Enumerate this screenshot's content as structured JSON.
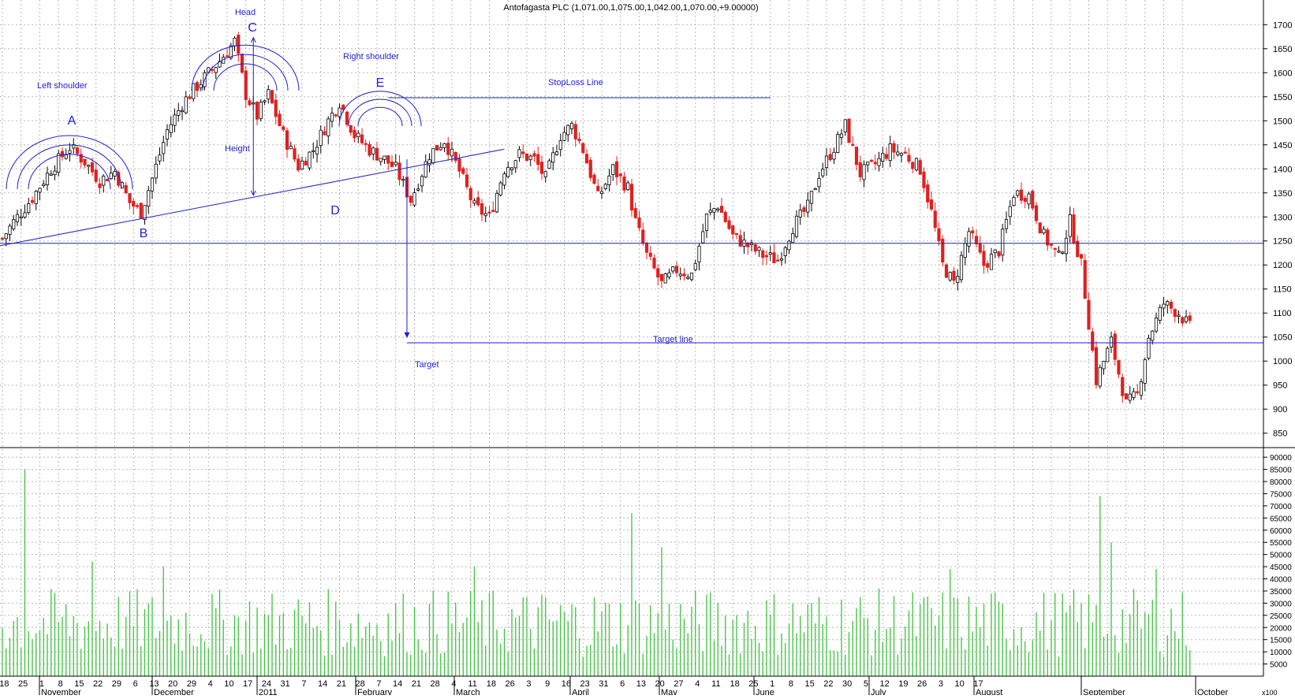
{
  "colors": {
    "up": "#000000",
    "down": "#e02020",
    "annotation": "#1f1fd0",
    "volume": "#40c040",
    "grid": "#b8b8b8"
  },
  "chart_data": [
    {
      "type": "candlestick",
      "title": "Antofagasta PLC (1,071.00,1,075.00,1,042.00,1,070.00,+9.00000)",
      "ylim": [
        820,
        1730
      ],
      "y_ticks": [
        850,
        900,
        950,
        1000,
        1050,
        1100,
        1150,
        1200,
        1250,
        1300,
        1350,
        1400,
        1450,
        1500,
        1550,
        1600,
        1650,
        1700
      ],
      "grid": true,
      "day_labels": [
        "18",
        "25",
        "1",
        "8",
        "15",
        "22",
        "29",
        "6",
        "13",
        "20",
        "29",
        "4",
        "10",
        "17",
        "24",
        "31",
        "7",
        "14",
        "21",
        "28",
        "7",
        "14",
        "21",
        "28",
        "4",
        "11",
        "18",
        "26",
        "3",
        "9",
        "16",
        "23",
        "31",
        "6",
        "13",
        "20",
        "27",
        "4",
        "11",
        "18",
        "25",
        "1",
        "8",
        "15",
        "22",
        "30",
        "5",
        "12",
        "19",
        "26",
        "3",
        "10",
        "17"
      ],
      "month_labels": [
        "November",
        "December",
        "2011",
        "February",
        "March",
        "April",
        "May",
        "June",
        "July",
        "August",
        "September",
        "October"
      ],
      "annotations": {
        "A": "A",
        "B": "B",
        "C": "C",
        "D": "D",
        "E": "E",
        "head": "Head",
        "left_shoulder": "Left shoulder",
        "right_shoulder": "Right shoulder",
        "height": "Height",
        "stoploss": "StopLoss Line",
        "target_line": "Target line",
        "target": "Target"
      },
      "levels": {
        "stoploss": 1548,
        "target": 1038,
        "support": 1245
      },
      "anchors": [
        {
          "d": 0,
          "c": 1255
        },
        {
          "d": 3,
          "c": 1290
        },
        {
          "d": 8,
          "c": 1340
        },
        {
          "d": 13,
          "c": 1400
        },
        {
          "d": 18,
          "c": 1445
        },
        {
          "d": 22,
          "c": 1415
        },
        {
          "d": 26,
          "c": 1375
        },
        {
          "d": 30,
          "c": 1395
        },
        {
          "d": 34,
          "c": 1330
        },
        {
          "d": 37,
          "c": 1310
        },
        {
          "d": 40,
          "c": 1380
        },
        {
          "d": 44,
          "c": 1480
        },
        {
          "d": 48,
          "c": 1535
        },
        {
          "d": 50,
          "c": 1555
        },
        {
          "d": 54,
          "c": 1590
        },
        {
          "d": 58,
          "c": 1625
        },
        {
          "d": 62,
          "c": 1665
        },
        {
          "d": 65,
          "c": 1555
        },
        {
          "d": 68,
          "c": 1510
        },
        {
          "d": 71,
          "c": 1555
        },
        {
          "d": 75,
          "c": 1470
        },
        {
          "d": 79,
          "c": 1405
        },
        {
          "d": 83,
          "c": 1440
        },
        {
          "d": 87,
          "c": 1500
        },
        {
          "d": 90,
          "c": 1540
        },
        {
          "d": 94,
          "c": 1470
        },
        {
          "d": 98,
          "c": 1440
        },
        {
          "d": 102,
          "c": 1420
        },
        {
          "d": 105,
          "c": 1400
        },
        {
          "d": 109,
          "c": 1335
        },
        {
          "d": 114,
          "c": 1430
        },
        {
          "d": 118,
          "c": 1460
        },
        {
          "d": 122,
          "c": 1395
        },
        {
          "d": 126,
          "c": 1320
        },
        {
          "d": 130,
          "c": 1300
        },
        {
          "d": 134,
          "c": 1400
        },
        {
          "d": 138,
          "c": 1430
        },
        {
          "d": 142,
          "c": 1420
        },
        {
          "d": 145,
          "c": 1380
        },
        {
          "d": 149,
          "c": 1470
        },
        {
          "d": 152,
          "c": 1490
        },
        {
          "d": 155,
          "c": 1440
        },
        {
          "d": 159,
          "c": 1340
        },
        {
          "d": 163,
          "c": 1400
        },
        {
          "d": 167,
          "c": 1360
        },
        {
          "d": 169,
          "c": 1290
        },
        {
          "d": 172,
          "c": 1220
        },
        {
          "d": 176,
          "c": 1160
        },
        {
          "d": 180,
          "c": 1190
        },
        {
          "d": 184,
          "c": 1180
        },
        {
          "d": 188,
          "c": 1300
        },
        {
          "d": 191,
          "c": 1325
        },
        {
          "d": 195,
          "c": 1260
        },
        {
          "d": 199,
          "c": 1240
        },
        {
          "d": 203,
          "c": 1220
        },
        {
          "d": 207,
          "c": 1210
        },
        {
          "d": 211,
          "c": 1280
        },
        {
          "d": 215,
          "c": 1320
        },
        {
          "d": 218,
          "c": 1390
        },
        {
          "d": 222,
          "c": 1445
        },
        {
          "d": 225,
          "c": 1490
        },
        {
          "d": 229,
          "c": 1390
        },
        {
          "d": 233,
          "c": 1410
        },
        {
          "d": 237,
          "c": 1440
        },
        {
          "d": 241,
          "c": 1430
        },
        {
          "d": 245,
          "c": 1400
        },
        {
          "d": 248,
          "c": 1310
        },
        {
          "d": 251,
          "c": 1200
        },
        {
          "d": 254,
          "c": 1160
        },
        {
          "d": 258,
          "c": 1270
        },
        {
          "d": 262,
          "c": 1200
        },
        {
          "d": 266,
          "c": 1230
        },
        {
          "d": 270,
          "c": 1350
        },
        {
          "d": 274,
          "c": 1345
        },
        {
          "d": 278,
          "c": 1260
        },
        {
          "d": 282,
          "c": 1215
        },
        {
          "d": 285,
          "c": 1290
        },
        {
          "d": 288,
          "c": 1200
        },
        {
          "d": 292,
          "c": 960
        },
        {
          "d": 296,
          "c": 1040
        },
        {
          "d": 300,
          "c": 910
        },
        {
          "d": 303,
          "c": 930
        },
        {
          "d": 306,
          "c": 1050
        },
        {
          "d": 310,
          "c": 1120
        },
        {
          "d": 314,
          "c": 1100
        },
        {
          "d": 317,
          "c": 1070
        }
      ],
      "candle_count": 318
    },
    {
      "type": "bar",
      "series_name": "volume",
      "ylim": [
        0,
        92000
      ],
      "y_ticks": [
        5000,
        10000,
        15000,
        20000,
        25000,
        30000,
        35000,
        40000,
        45000,
        50000,
        55000,
        60000,
        65000,
        70000,
        75000,
        80000,
        85000,
        90000
      ],
      "unit_label": "x100",
      "spikes": [
        {
          "d": 6,
          "v": 85000
        },
        {
          "d": 24,
          "v": 47000
        },
        {
          "d": 43,
          "v": 45000
        },
        {
          "d": 126,
          "v": 45000
        },
        {
          "d": 168,
          "v": 67000
        },
        {
          "d": 176,
          "v": 53000
        },
        {
          "d": 253,
          "v": 44000
        },
        {
          "d": 293,
          "v": 74000
        },
        {
          "d": 296,
          "v": 55000
        },
        {
          "d": 308,
          "v": 44000
        }
      ]
    }
  ]
}
